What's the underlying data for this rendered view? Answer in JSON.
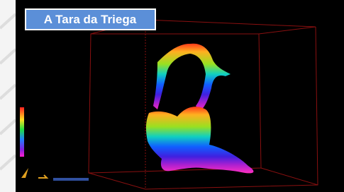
{
  "header": {
    "title": "A Tara da Triega"
  }
}
